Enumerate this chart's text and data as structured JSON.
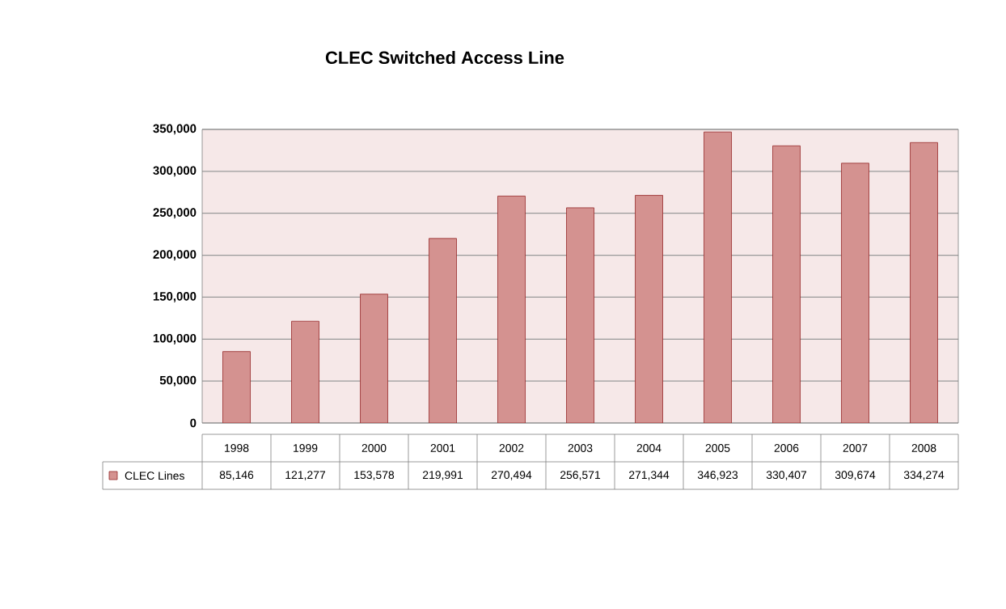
{
  "chart_data": {
    "type": "bar",
    "title": "CLEC Switched Access Line",
    "categories": [
      "1998",
      "1999",
      "2000",
      "2001",
      "2002",
      "2003",
      "2004",
      "2005",
      "2006",
      "2007",
      "2008"
    ],
    "series": [
      {
        "name": "CLEC Lines",
        "color": "#d49290",
        "values": [
          85146,
          121277,
          153578,
          219991,
          270494,
          256571,
          271344,
          346923,
          330407,
          309674,
          334274
        ],
        "value_labels": [
          "85,146",
          "121,277",
          "153,578",
          "219,991",
          "270,494",
          "256,571",
          "271,344",
          "346,923",
          "330,407",
          "309,674",
          "334,274"
        ]
      }
    ],
    "ylim": [
      0,
      350000
    ],
    "yticks": [
      {
        "value": 0,
        "label": "0"
      },
      {
        "value": 50000,
        "label": "50,000"
      },
      {
        "value": 100000,
        "label": "100,000"
      },
      {
        "value": 150000,
        "label": "150,000"
      },
      {
        "value": 200000,
        "label": "200,000"
      },
      {
        "value": 250000,
        "label": "250,000"
      },
      {
        "value": 300000,
        "label": "300,000"
      },
      {
        "value": 350000,
        "label": "350,000"
      }
    ],
    "grid": "y",
    "legend": "bottom"
  }
}
